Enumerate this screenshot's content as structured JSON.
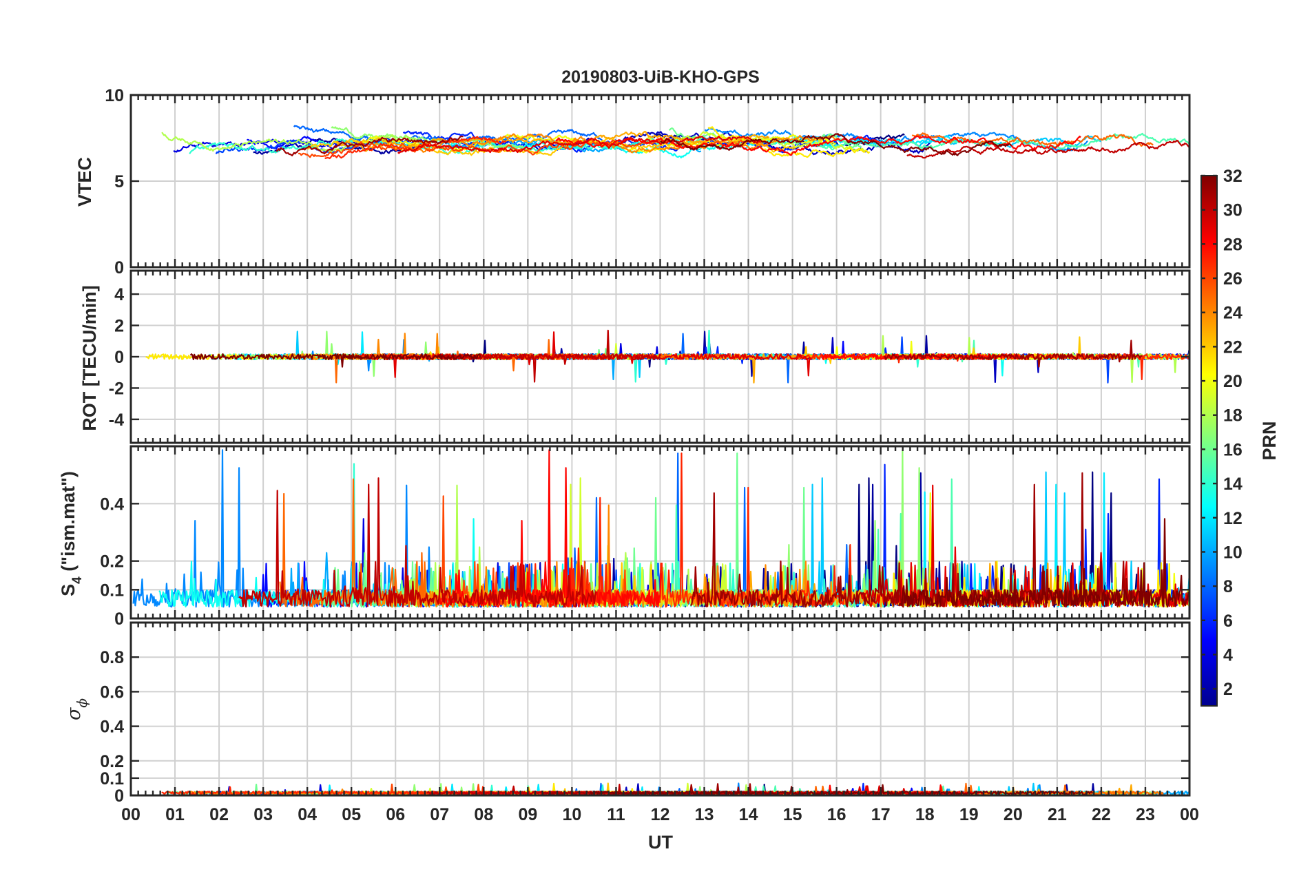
{
  "chart_data": {
    "type": "line",
    "title": "20190803-UiB-KHO-GPS",
    "xlabel": "UT",
    "x_ticks": [
      "00",
      "01",
      "02",
      "03",
      "04",
      "05",
      "06",
      "07",
      "08",
      "09",
      "10",
      "11",
      "12",
      "13",
      "14",
      "15",
      "16",
      "17",
      "18",
      "19",
      "20",
      "21",
      "22",
      "23",
      "00"
    ],
    "x_range_hours": [
      0,
      24
    ],
    "grid": true,
    "panels": [
      {
        "id": "vtec",
        "ylabel": "VTEC",
        "ylim": [
          0,
          10
        ],
        "yticks": [
          0,
          5,
          10
        ],
        "ytick_labels": [
          "0",
          "5",
          "10"
        ],
        "typical_value": 7.2,
        "typical_spread": 1.0
      },
      {
        "id": "rot",
        "ylabel": "ROT [TECU/min]",
        "ylim": [
          -5.5,
          5.5
        ],
        "yticks": [
          -4,
          -2,
          0,
          2,
          4
        ],
        "ytick_labels": [
          "-4",
          "-2",
          "0",
          "2",
          "4"
        ],
        "typical_value": 0.0,
        "max_excursion": 1.7
      },
      {
        "id": "s4",
        "ylabel_main": "S",
        "ylabel_sub": "4",
        "ylabel_rest": " (\"ism.mat\")",
        "ylim": [
          0,
          0.6
        ],
        "yticks": [
          0,
          0.1,
          0.2,
          0.4
        ],
        "ytick_labels": [
          "0",
          "0.1",
          "0.2",
          "0.4"
        ],
        "typical_value": 0.07,
        "max_value": 0.59
      },
      {
        "id": "sigma_phi",
        "ylabel_main": "σ",
        "ylabel_sub": "ϕ",
        "ylim": [
          0,
          1.0
        ],
        "yticks": [
          0,
          0.1,
          0.2,
          0.4,
          0.6,
          0.8
        ],
        "ytick_labels": [
          "0",
          "0.1",
          "0.2",
          "0.4",
          "0.6",
          "0.8"
        ],
        "typical_value": 0.015,
        "max_value": 0.07
      }
    ],
    "colorbar": {
      "label": "PRN",
      "range": [
        1,
        32
      ],
      "tick_labels": [
        "2",
        "4",
        "6",
        "8",
        "10",
        "12",
        "14",
        "16",
        "18",
        "20",
        "22",
        "24",
        "26",
        "28",
        "30",
        "32"
      ],
      "colormap": "jet"
    },
    "series_note": "One coloured trace per GPS satellite PRN 1-32, colour given by colorbar."
  }
}
